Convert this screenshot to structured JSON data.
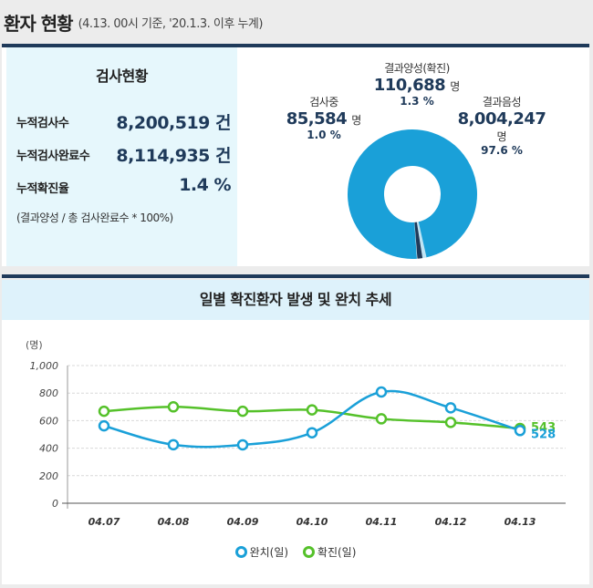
{
  "header": {
    "title": "환자 현황",
    "subtitle": "(4.13. 00시 기준, '20.1.3. 이후 누계)"
  },
  "test_status": {
    "heading": "검사현황",
    "rows": [
      {
        "label": "누적검사수",
        "value": "8,200,519 건"
      },
      {
        "label": "누적검사완료수",
        "value": "8,114,935 건"
      },
      {
        "label": "누적확진율",
        "value": "1.4 %"
      }
    ],
    "note": "(결과양성 / 총 검사완료수 * 100%)"
  },
  "donut": {
    "testing": {
      "label": "검사중",
      "value": "85,584",
      "unit": "명",
      "pct": "1.0 %"
    },
    "positive": {
      "label": "결과양성(확진)",
      "value": "110,688",
      "unit": "명",
      "pct": "1.3 %"
    },
    "negative": {
      "label": "결과음성",
      "value": "8,004,247",
      "unit": "명",
      "pct": "97.6 %"
    },
    "colors": {
      "negative": "#1aa0d8",
      "positive": "#1f3a5a",
      "testing": "#bfe4f4"
    }
  },
  "chart_data": {
    "type": "line",
    "title": "일별 확진환자 발생 및 완치 추세",
    "ylabel": "(명)",
    "ylim": [
      0,
      1000
    ],
    "yticks": [
      "0",
      "200",
      "400",
      "600",
      "800",
      "1,000"
    ],
    "categories": [
      "04.07",
      "04.08",
      "04.09",
      "04.10",
      "04.11",
      "04.12",
      "04.13"
    ],
    "series": [
      {
        "name": "완치(일)",
        "color": "#1aa0d8",
        "values": [
          562,
          425,
          424,
          512,
          808,
          693,
          528
        ]
      },
      {
        "name": "확진(일)",
        "color": "#55c12a",
        "values": [
          668,
          700,
          668,
          678,
          613,
          587,
          543
        ]
      }
    ],
    "end_labels": [
      "543",
      "528"
    ],
    "legend_position": "bottom",
    "grid": true
  }
}
